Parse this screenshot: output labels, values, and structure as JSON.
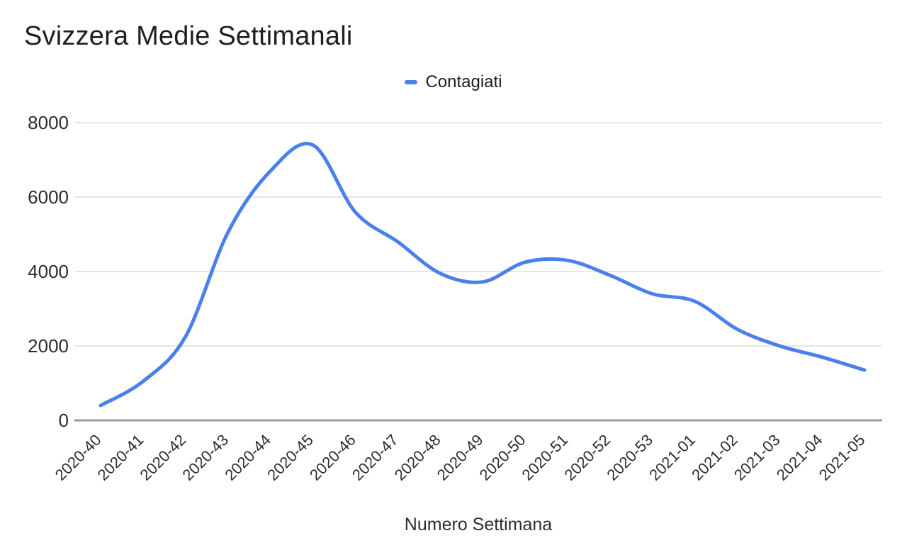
{
  "page": {
    "background": "#ffffff"
  },
  "chart_data": {
    "type": "line",
    "title": "Svizzera Medie Settimanali",
    "xlabel": "Numero Settimana",
    "ylabel": "",
    "grid": true,
    "smooth": true,
    "legend": {
      "position": "top",
      "entries": [
        "Contagiati"
      ]
    },
    "categories": [
      "2020-40",
      "2020-41",
      "2020-42",
      "2020-43",
      "2020-44",
      "2020-45",
      "2020-46",
      "2020-47",
      "2020-48",
      "2020-49",
      "2020-50",
      "2020-51",
      "2020-52",
      "2020-53",
      "2021-01",
      "2021-02",
      "2021-03",
      "2021-04",
      "2021-05"
    ],
    "series": [
      {
        "name": "Contagiati",
        "color": "#4a80ec",
        "values": [
          400,
          1050,
          2250,
          5050,
          6700,
          7400,
          5600,
          4800,
          3950,
          3720,
          4250,
          4300,
          3900,
          3400,
          3200,
          2450,
          2000,
          1700,
          1350
        ]
      }
    ],
    "ylim": [
      0,
      8000
    ],
    "yticks": [
      0,
      2000,
      4000,
      6000,
      8000
    ],
    "colors": {
      "gridline": "#e6e6e6",
      "axis_line": "#9b9b9b",
      "tick_label": "#2d2d2d"
    }
  }
}
